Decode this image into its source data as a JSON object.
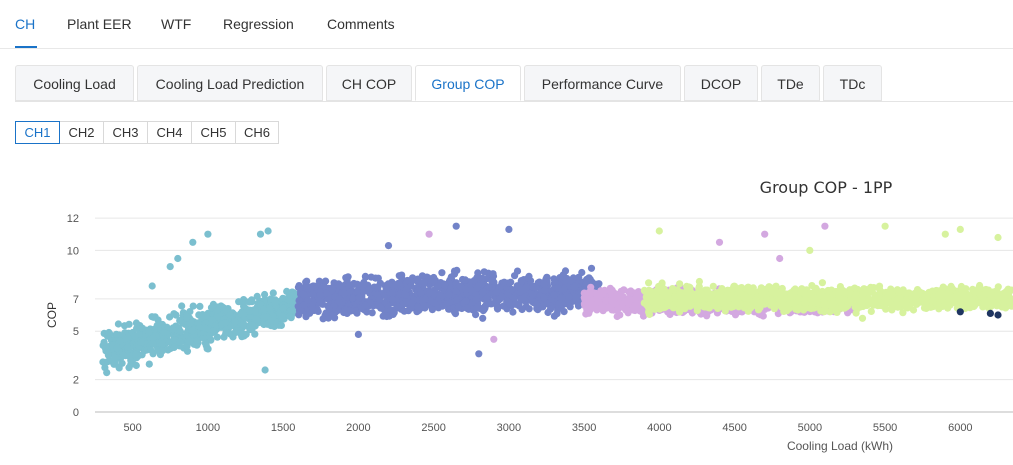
{
  "top_tabs": [
    {
      "label": "CH",
      "active": true
    },
    {
      "label": "Plant EER",
      "active": false
    },
    {
      "label": "WTF",
      "active": false
    },
    {
      "label": "Regression",
      "active": false
    },
    {
      "label": "Comments",
      "active": false
    }
  ],
  "sub_tabs": [
    {
      "label": "Cooling Load",
      "active": false
    },
    {
      "label": "Cooling Load Prediction",
      "active": false
    },
    {
      "label": "CH COP",
      "active": false
    },
    {
      "label": "Group COP",
      "active": true
    },
    {
      "label": "Performance Curve",
      "active": false
    },
    {
      "label": "DCOP",
      "active": false
    },
    {
      "label": "TDe",
      "active": false
    },
    {
      "label": "TDc",
      "active": false
    }
  ],
  "chiller_buttons": [
    {
      "label": "CH1",
      "active": true
    },
    {
      "label": "CH2",
      "active": false
    },
    {
      "label": "CH3",
      "active": false
    },
    {
      "label": "CH4",
      "active": false
    },
    {
      "label": "CH5",
      "active": false
    },
    {
      "label": "CH6",
      "active": false
    }
  ],
  "colors": {
    "accent": "#1a73c8"
  },
  "chart_data": {
    "type": "scatter",
    "title": "Group COP - 1PP",
    "xlabel": "Cooling Load (kWh)",
    "ylabel": "COP",
    "xlim": [
      250,
      6350
    ],
    "ylim": [
      0,
      12.5
    ],
    "x_ticks": [
      "500",
      "1000",
      "1500",
      "2000",
      "2500",
      "3000",
      "3500",
      "4000",
      "4500",
      "5000",
      "5500",
      "6000"
    ],
    "y_ticks": [
      "0",
      "2",
      "5",
      "7",
      "10",
      "12"
    ],
    "grid": true,
    "series": [
      {
        "color": "#7bbfcf",
        "clusters": [
          {
            "x": [
              300,
              1600
            ],
            "y_start": [
              2.0,
              5.5
            ],
            "y_end": [
              5.5,
              7.8
            ]
          }
        ],
        "points": [
          [
            630,
            7.8
          ],
          [
            800,
            9.5
          ],
          [
            900,
            10.5
          ],
          [
            1000,
            11.0
          ],
          [
            1350,
            11.0
          ],
          [
            1400,
            11.2
          ],
          [
            1380,
            2.6
          ],
          [
            700,
            3.8
          ],
          [
            750,
            9.0
          ]
        ]
      },
      {
        "color": "#7283c8",
        "clusters": [
          {
            "x": [
              1600,
              3600
            ],
            "y_start": [
              5.5,
              8.5
            ],
            "y_end": [
              6.0,
              9.0
            ]
          }
        ],
        "points": [
          [
            2650,
            11.5
          ],
          [
            3000,
            11.3
          ],
          [
            2200,
            10.3
          ],
          [
            2800,
            3.6
          ],
          [
            2000,
            4.8
          ]
        ]
      },
      {
        "color": "#d3a8e0",
        "clusters": [
          {
            "x": [
              3500,
              5300
            ],
            "y_start": [
              5.8,
              7.8
            ],
            "y_end": [
              6.0,
              7.5
            ]
          }
        ],
        "points": [
          [
            2470,
            11.0
          ],
          [
            2900,
            4.5
          ],
          [
            4700,
            11.0
          ],
          [
            5100,
            11.5
          ],
          [
            4400,
            10.5
          ],
          [
            4800,
            9.5
          ]
        ]
      },
      {
        "color": "#d7f29e",
        "clusters": [
          {
            "x": [
              3900,
              6350
            ],
            "y_start": [
              6.0,
              8.0
            ],
            "y_end": [
              6.3,
              7.8
            ]
          }
        ],
        "points": [
          [
            4000,
            11.2
          ],
          [
            5500,
            11.5
          ],
          [
            6000,
            11.3
          ],
          [
            6250,
            10.8
          ],
          [
            5900,
            11.0
          ],
          [
            5350,
            5.8
          ],
          [
            5000,
            10.0
          ]
        ]
      },
      {
        "color": "#1f3561",
        "clusters": [],
        "points": [
          [
            6000,
            6.2
          ],
          [
            6200,
            6.1
          ],
          [
            6250,
            6.0
          ],
          [
            6350,
            5.9
          ]
        ]
      }
    ]
  }
}
